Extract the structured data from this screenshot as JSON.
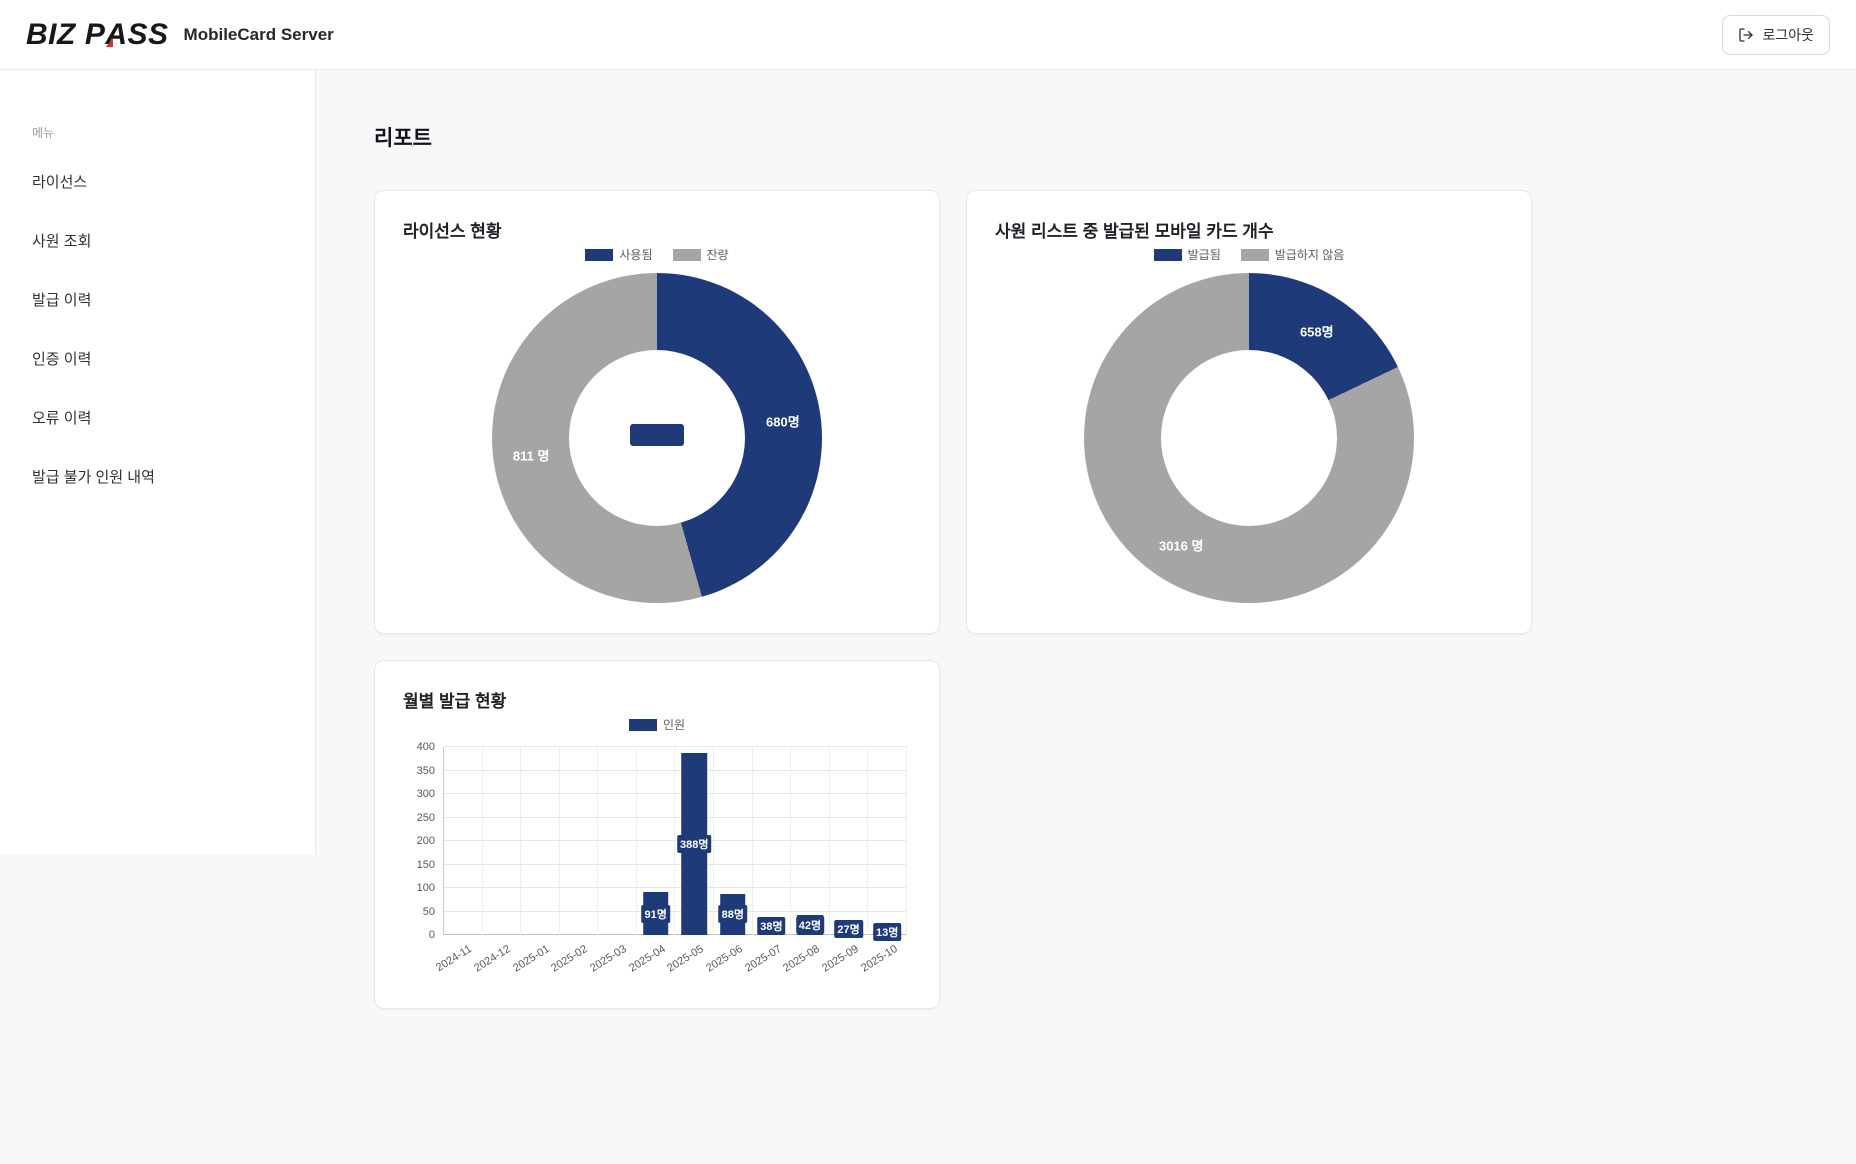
{
  "header": {
    "logo": {
      "part1": "BIZ",
      "part2_pre": "P",
      "part2_a": "A",
      "part2_post": "SS"
    },
    "app_title": "MobileCard Server",
    "logout_label": "로그아웃"
  },
  "sidebar": {
    "menu_label": "메뉴",
    "items": [
      {
        "label": "라이선스"
      },
      {
        "label": "사원 조회"
      },
      {
        "label": "발급 이력"
      },
      {
        "label": "인증 이력"
      },
      {
        "label": "오류 이력"
      },
      {
        "label": "발급 불가 인원 내역"
      }
    ]
  },
  "main": {
    "page_title": "리포트"
  },
  "colors": {
    "primary": "#1e3a78",
    "secondary": "#a5a5a5",
    "accent_red": "#d93025"
  },
  "chart_data": [
    {
      "type": "pie",
      "title": "라이선스 현황",
      "legend": [
        "사용됨",
        "잔량"
      ],
      "values": [
        680,
        811
      ],
      "data_labels": [
        "680명",
        "811 명"
      ],
      "colors": [
        "#1e3a78",
        "#a5a5a5"
      ],
      "center_badge": true,
      "legend_position": "top"
    },
    {
      "type": "pie",
      "title": "사원 리스트 중 발급된 모바일 카드 개수",
      "legend": [
        "발급됨",
        "발급하지 않음"
      ],
      "values": [
        658,
        3016
      ],
      "data_labels": [
        "658명",
        "3016 명"
      ],
      "colors": [
        "#1e3a78",
        "#a5a5a5"
      ],
      "center_badge": false,
      "legend_position": "top"
    },
    {
      "type": "bar",
      "title": "월별 발급 현황",
      "legend": [
        "인원"
      ],
      "categories": [
        "2024-11",
        "2024-12",
        "2025-01",
        "2025-02",
        "2025-03",
        "2025-04",
        "2025-05",
        "2025-06",
        "2025-07",
        "2025-08",
        "2025-09",
        "2025-10"
      ],
      "values": [
        0,
        0,
        0,
        0,
        0,
        91,
        388,
        88,
        38,
        42,
        27,
        13
      ],
      "bar_labels": [
        "",
        "",
        "",
        "",
        "",
        "91명",
        "388명",
        "88명",
        "38명",
        "42명",
        "27명",
        "13명"
      ],
      "xlabel": "",
      "ylabel": "",
      "ylim": [
        0,
        400
      ],
      "yticks": [
        0,
        50,
        100,
        150,
        200,
        250,
        300,
        350,
        400
      ],
      "bar_color": "#1e3a78",
      "grid": true,
      "legend_position": "top"
    }
  ]
}
